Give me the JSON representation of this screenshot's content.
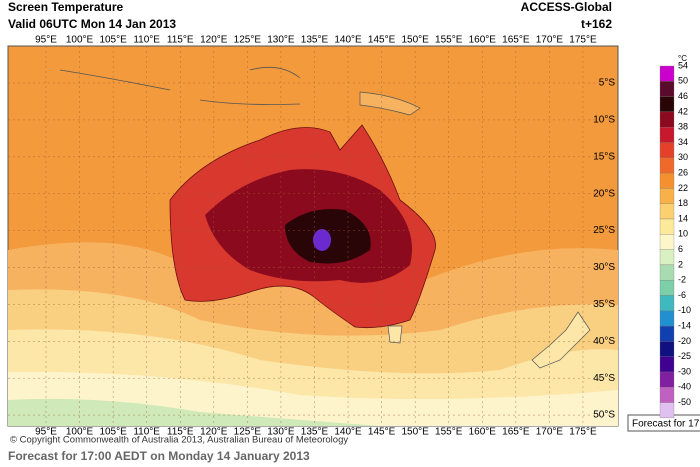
{
  "header": {
    "title": "Screen Temperature",
    "valid": "Valid 06UTC Mon 14 Jan 2013",
    "model": "ACCESS-Global",
    "lead": "t+162"
  },
  "map": {
    "lon_labels": [
      "95°E",
      "100°E",
      "105°E",
      "110°E",
      "115°E",
      "120°E",
      "125°E",
      "130°E",
      "135°E",
      "140°E",
      "145°E",
      "150°E",
      "155°E",
      "160°E",
      "165°E",
      "170°E",
      "175°E"
    ],
    "lat_labels": [
      "5°S",
      "10°S",
      "15°S",
      "20°S",
      "25°S",
      "30°S",
      "35°S",
      "40°S",
      "45°S",
      "50°S"
    ]
  },
  "colorbar": {
    "unit": "°C",
    "levels": [
      54,
      50,
      46,
      42,
      38,
      34,
      30,
      26,
      22,
      18,
      14,
      10,
      6,
      2,
      -2,
      -6,
      -10,
      -14,
      -20,
      -25,
      -30,
      -40,
      -50
    ],
    "colors": [
      "#cc00cc",
      "#5a0a2a",
      "#2a0508",
      "#8b0a1e",
      "#c8182e",
      "#e4402a",
      "#ef6a2a",
      "#f5902e",
      "#f8b048",
      "#fad070",
      "#fce99a",
      "#fdf6c8",
      "#d9f0c0",
      "#a8dcb0",
      "#7ccfa8",
      "#40b8c0",
      "#2090d0",
      "#1040b0",
      "#101080",
      "#400090",
      "#8020a0",
      "#c060c0",
      "#e0c0f0"
    ]
  },
  "footer": {
    "copyright": "© Copyright Commonwealth of Australia 2013, Australian Bureau of Meteorology",
    "caption": "Forecast for 17:00 AEDT on Monday 14 January 2013",
    "tooltip": "Forecast for 17"
  }
}
